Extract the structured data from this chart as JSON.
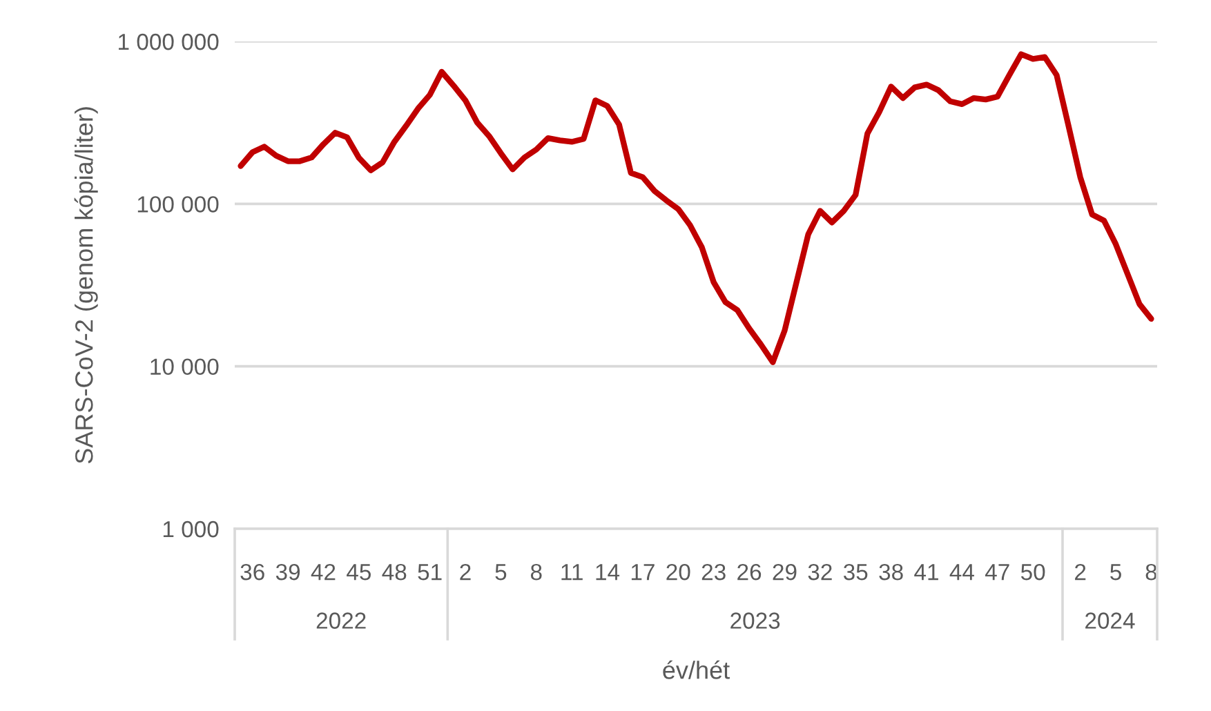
{
  "chart_data": {
    "type": "line",
    "ylabel": "SARS-CoV-2 (genom kópia/liter)",
    "xlabel": "év/hét",
    "categories": [
      null,
      "36",
      null,
      null,
      "39",
      null,
      null,
      "42",
      null,
      null,
      "45",
      null,
      null,
      "48",
      null,
      null,
      "51",
      null,
      null,
      "2",
      null,
      null,
      "5",
      null,
      null,
      "8",
      null,
      null,
      "11",
      null,
      null,
      "14",
      null,
      null,
      "17",
      null,
      null,
      "20",
      null,
      null,
      "23",
      null,
      null,
      "26",
      null,
      null,
      "29",
      null,
      null,
      "32",
      null,
      null,
      "35",
      null,
      null,
      "38",
      null,
      null,
      "41",
      null,
      null,
      "44",
      null,
      null,
      "47",
      null,
      null,
      "50",
      null,
      null,
      null,
      "2",
      null,
      null,
      "5",
      null,
      null,
      "8"
    ],
    "series": [
      {
        "color": "#c00000",
        "values": [
          171000,
          208000,
          225000,
          198000,
          183000,
          183000,
          193000,
          233000,
          274000,
          257000,
          192000,
          161000,
          180000,
          241000,
          303000,
          386000,
          469000,
          650000,
          535000,
          434000,
          317000,
          262000,
          205000,
          163000,
          193000,
          216000,
          254000,
          246000,
          241000,
          251000,
          434000,
          401000,
          308000,
          155000,
          146000,
          120000,
          105000,
          93000,
          74000,
          54000,
          32900,
          24800,
          22200,
          17100,
          13600,
          10600,
          16600,
          32900,
          65000,
          90500,
          76800,
          90500,
          113500,
          271000,
          368000,
          527000,
          448000,
          521000,
          542000,
          501000,
          428000,
          411000,
          448000,
          439000,
          457000,
          621000,
          834000,
          781000,
          801000,
          621000,
          303000,
          146000,
          86000,
          79000,
          56500,
          37000,
          24200,
          19600
        ]
      }
    ],
    "log": "y",
    "ylim": [
      1000,
      1000000
    ],
    "yticks": [
      {
        "value": 1000,
        "label": "1 000"
      },
      {
        "value": 10000,
        "label": "10 000"
      },
      {
        "value": 100000,
        "label": "100 000"
      },
      {
        "value": 1000000,
        "label": "1 000 000"
      }
    ],
    "grid": "y",
    "legend": false,
    "marker": "none",
    "line_style": "solid",
    "annotations": [
      "2022",
      "2023",
      "2024"
    ]
  }
}
